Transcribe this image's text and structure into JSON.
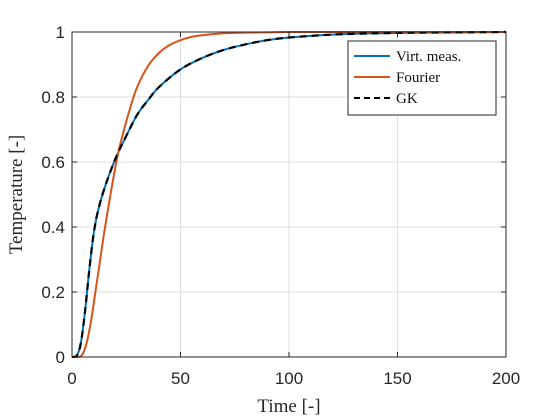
{
  "chart_data": {
    "type": "line",
    "xlabel": "Time [-]",
    "ylabel": "Temperature [-]",
    "xlim": [
      0,
      200
    ],
    "ylim": [
      0,
      1
    ],
    "xticks": [
      0,
      50,
      100,
      150,
      200
    ],
    "yticks": [
      0,
      0.2,
      0.4,
      0.6,
      0.8,
      1
    ],
    "xtick_labels": [
      "0",
      "50",
      "100",
      "150",
      "200"
    ],
    "ytick_labels": [
      "0",
      "0.2",
      "0.4",
      "0.6",
      "0.8",
      "1"
    ],
    "grid": true,
    "legend_position": "top-right",
    "series": [
      {
        "name": "Virt. meas.",
        "color": "#0072bd",
        "style": "solid",
        "x": [
          0,
          2,
          4,
          6,
          8,
          10,
          12,
          15,
          20,
          25,
          30,
          35,
          40,
          50,
          60,
          70,
          80,
          90,
          100,
          120,
          140,
          160,
          180,
          200
        ],
        "y": [
          0,
          0.002,
          0.04,
          0.14,
          0.27,
          0.38,
          0.45,
          0.52,
          0.61,
          0.68,
          0.745,
          0.79,
          0.83,
          0.885,
          0.92,
          0.945,
          0.962,
          0.975,
          0.983,
          0.992,
          0.996,
          0.998,
          0.999,
          1.0
        ]
      },
      {
        "name": "Fourier",
        "color": "#d95319",
        "style": "solid",
        "x": [
          0,
          3,
          5,
          7,
          9,
          11,
          13,
          15,
          18,
          21,
          24,
          27,
          30,
          35,
          40,
          45,
          50,
          55,
          60,
          70,
          80,
          90,
          100,
          120,
          150,
          200
        ],
        "y": [
          0,
          0.0,
          0.01,
          0.05,
          0.12,
          0.21,
          0.3,
          0.39,
          0.51,
          0.62,
          0.7,
          0.77,
          0.83,
          0.895,
          0.935,
          0.96,
          0.975,
          0.985,
          0.99,
          0.996,
          0.998,
          0.999,
          1.0,
          1.0,
          1.0,
          1.0
        ]
      },
      {
        "name": "GK",
        "color": "#000000",
        "style": "dashed",
        "x": [
          0,
          2,
          4,
          6,
          8,
          10,
          12,
          15,
          20,
          25,
          30,
          35,
          40,
          50,
          60,
          70,
          80,
          90,
          100,
          120,
          140,
          160,
          180,
          200
        ],
        "y": [
          0,
          0.002,
          0.04,
          0.14,
          0.27,
          0.38,
          0.45,
          0.52,
          0.61,
          0.68,
          0.745,
          0.79,
          0.83,
          0.885,
          0.92,
          0.945,
          0.962,
          0.975,
          0.983,
          0.992,
          0.996,
          0.998,
          0.999,
          1.0
        ]
      }
    ]
  }
}
